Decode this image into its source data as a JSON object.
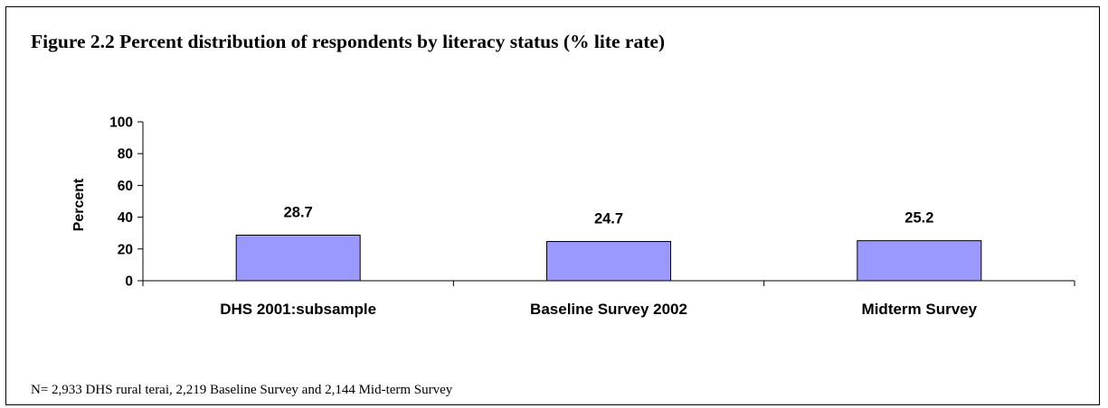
{
  "figure": {
    "title": "Figure 2.2 Percent distribution of respondents by literacy status (% lite rate)",
    "note": "N= 2,933 DHS rural terai, 2,219 Baseline Survey and 2,144 Mid-term Survey"
  },
  "chart_data": {
    "type": "bar",
    "categories": [
      "DHS 2001:subsample",
      "Baseline Survey 2002",
      "Midterm Survey"
    ],
    "values": [
      28.7,
      24.7,
      25.2
    ],
    "data_labels": [
      "28.7",
      "24.7",
      "25.2"
    ],
    "title": "Figure 2.2 Percent distribution of respondents by literacy status (% lite rate)",
    "xlabel": "",
    "ylabel": "Percent",
    "ylim": [
      0,
      100
    ],
    "yticks": [
      0,
      20,
      40,
      60,
      80,
      100
    ],
    "grid": false,
    "legend": "none",
    "bar_color": "#9999ff",
    "bar_edge_color": "#000000"
  }
}
